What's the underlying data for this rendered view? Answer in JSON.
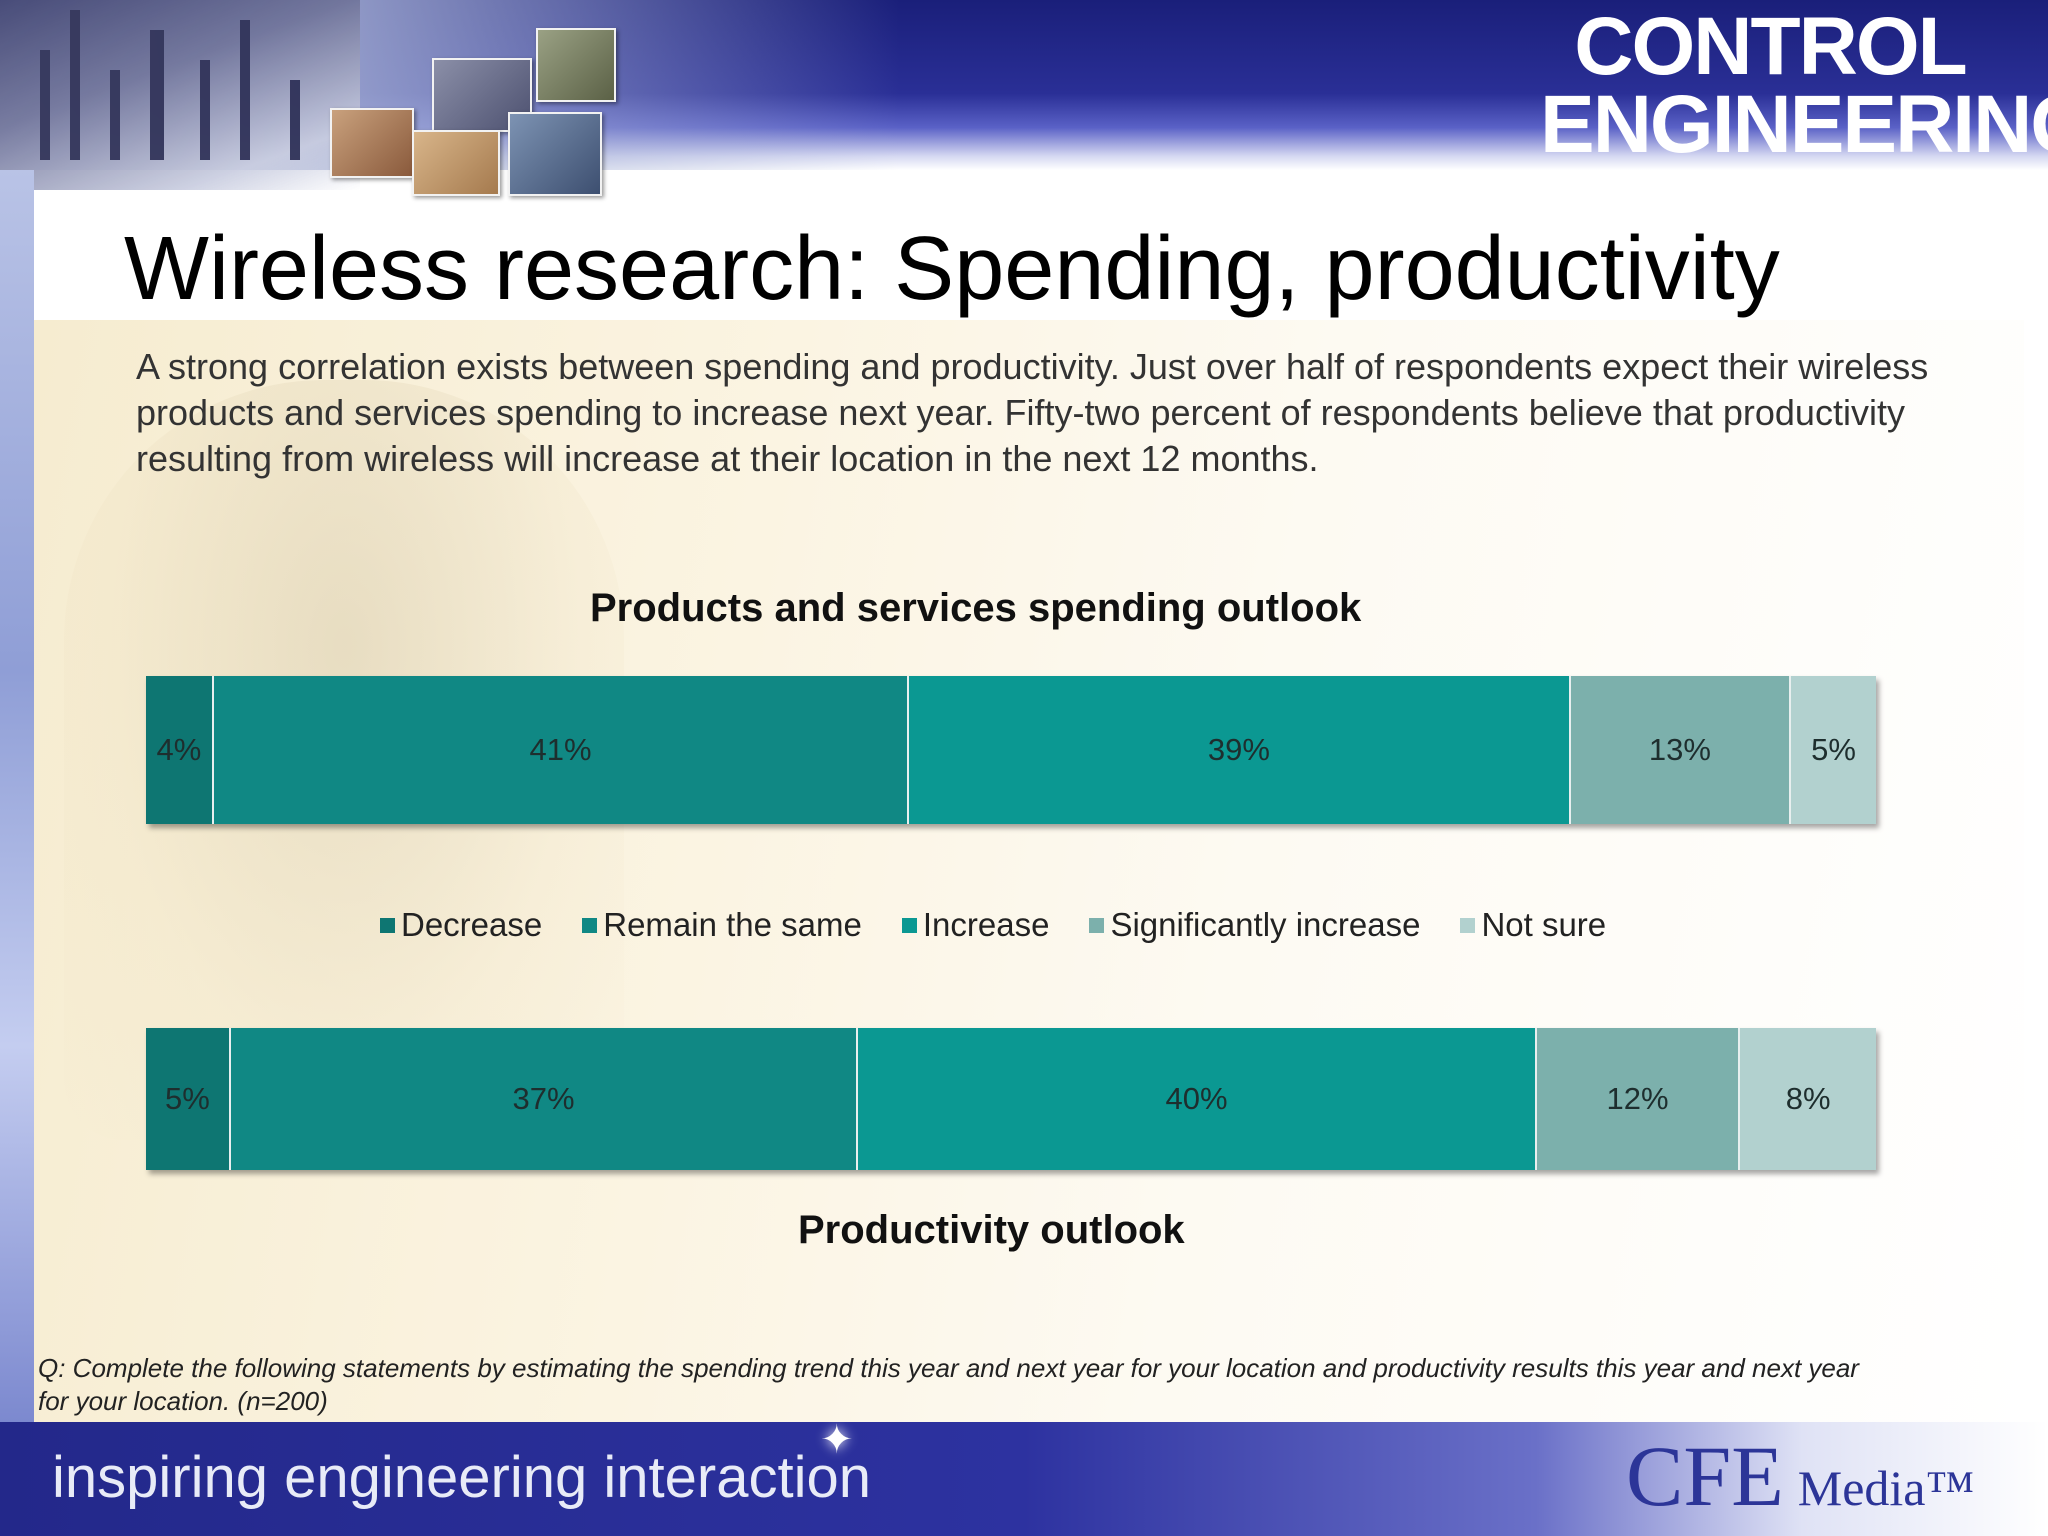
{
  "header": {
    "logo_line1": "CONTROL",
    "logo_line2": "ENGINEERING"
  },
  "slide": {
    "title": "Wireless research: Spending, productivity",
    "intro": "A strong correlation exists between spending and productivity. Just over half of respondents expect their wireless products and services spending to increase next year. Fifty-two percent of respondents believe that productivity resulting from wireless will increase at their location in the next 12 months.",
    "footnote": "Q: Complete the following statements by estimating the spending trend this year and next year for your location and productivity results this year and next year\nfor your location. (n=200)"
  },
  "colors": {
    "Decrease": "#0e7672",
    "Remain the same": "#108884",
    "Increase": "#0b9892",
    "Significantly increase": "#7cb0ac",
    "Not sure": "#b2d1cf"
  },
  "chart_data": [
    {
      "type": "bar",
      "orientation": "horizontal-stacked-100",
      "title": "Products and services spending outlook",
      "categories": [
        "Decrease",
        "Remain the same",
        "Increase",
        "Significantly increase",
        "Not sure"
      ],
      "values": [
        4,
        41,
        39,
        13,
        5
      ],
      "labels": [
        "4%",
        "41%",
        "39%",
        "13%",
        "5%"
      ],
      "legend": "between charts",
      "grid": false
    },
    {
      "type": "bar",
      "orientation": "horizontal-stacked-100",
      "title": "Productivity outlook",
      "categories": [
        "Decrease",
        "Remain the same",
        "Increase",
        "Significantly increase",
        "Not sure"
      ],
      "values": [
        5,
        37,
        40,
        12,
        8
      ],
      "labels": [
        "5%",
        "37%",
        "40%",
        "12%",
        "8%"
      ],
      "legend": "between charts",
      "grid": false
    }
  ],
  "legend": [
    "Decrease",
    "Remain the same",
    "Increase",
    "Significantly increase",
    "Not sure"
  ],
  "footer": {
    "tagline": "inspiring engineering interaction",
    "brand_big": "CFE",
    "brand_small": "Media™"
  }
}
